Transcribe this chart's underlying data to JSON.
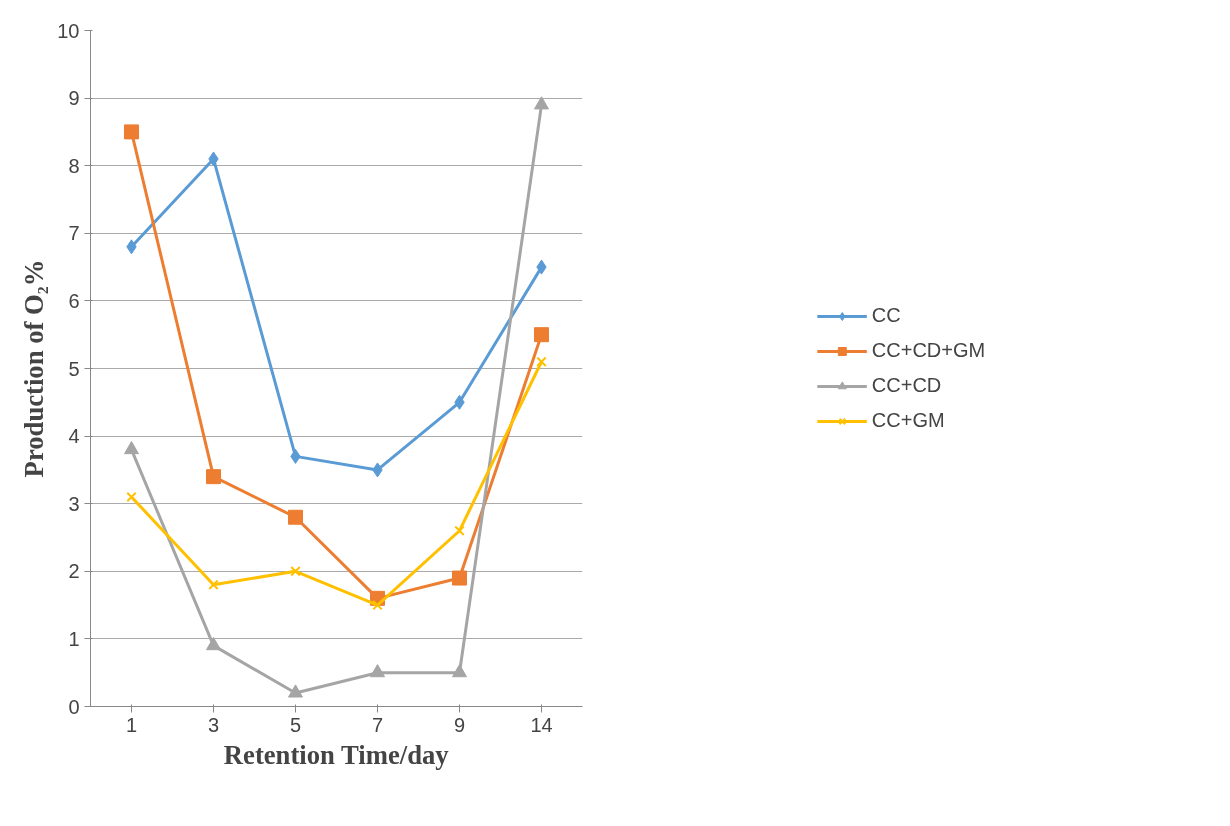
{
  "chart_data": {
    "type": "line",
    "xlabel": "Retention Time/day",
    "ylabel": "Production of O₂%",
    "categories": [
      "1",
      "3",
      "5",
      "7",
      "9",
      "14"
    ],
    "series": [
      {
        "name": "CC",
        "color": "#5b9bd5",
        "marker": "diamond",
        "values": [
          6.8,
          8.1,
          3.7,
          3.5,
          4.5,
          6.5
        ]
      },
      {
        "name": "CC+CD+GM",
        "color": "#ed7d31",
        "marker": "square",
        "values": [
          8.5,
          3.4,
          2.8,
          1.6,
          1.9,
          5.5
        ]
      },
      {
        "name": "CC+CD",
        "color": "#a5a5a5",
        "marker": "triangle",
        "values": [
          3.8,
          0.9,
          0.2,
          0.5,
          0.5,
          8.9
        ]
      },
      {
        "name": "CC+GM",
        "color": "#ffc000",
        "marker": "cross",
        "values": [
          3.1,
          1.8,
          2.0,
          1.5,
          2.6,
          5.1
        ]
      }
    ],
    "ylim": [
      0,
      10
    ],
    "yticks": [
      0,
      1,
      2,
      3,
      4,
      5,
      6,
      7,
      8,
      9,
      10
    ],
    "grid": "y",
    "legend": "right",
    "line_style": "solid"
  }
}
